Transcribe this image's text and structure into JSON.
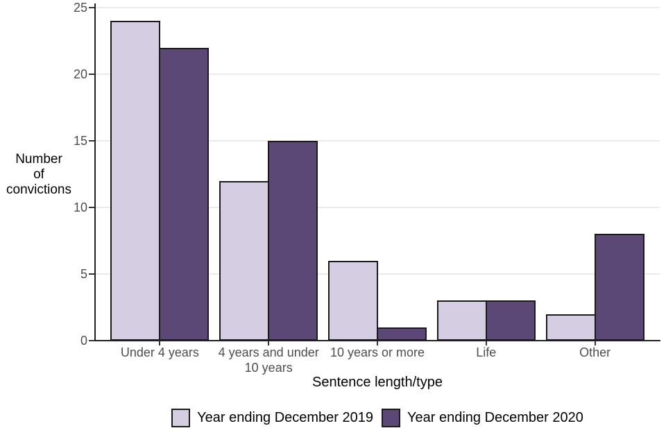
{
  "chart_data": {
    "type": "bar",
    "title": "",
    "categories": [
      "Under 4 years",
      "4 years and under\n10 years",
      "10 years or more",
      "Life",
      "Other"
    ],
    "series": [
      {
        "name": "Year ending December 2019",
        "color": "#d5cee2",
        "values": [
          24,
          12,
          6,
          3,
          2
        ]
      },
      {
        "name": "Year ending December 2020",
        "color": "#5b4876",
        "values": [
          22,
          15,
          1,
          3,
          8
        ]
      }
    ],
    "xlabel": "Sentence length/type",
    "ylabel": "Number of convictions",
    "ylabel_lines": [
      "Number",
      "of",
      "convictions"
    ],
    "yticks": [
      0,
      5,
      10,
      15,
      20,
      25
    ],
    "ylim": [
      0,
      25
    ],
    "grid": "horizontal-light-gray",
    "legend_position": "bottom",
    "colors": {
      "bar_outline": "#1a1a1a",
      "gridline": "#ebebeb",
      "axis_line": "#1f1f1f",
      "tick_label": "#4d4d4d",
      "title_text": "#000000"
    }
  }
}
